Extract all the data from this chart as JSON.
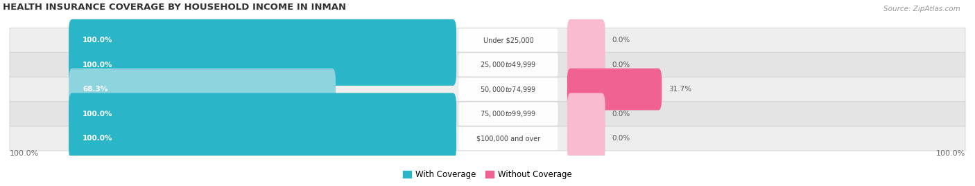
{
  "title": "HEALTH INSURANCE COVERAGE BY HOUSEHOLD INCOME IN INMAN",
  "source": "Source: ZipAtlas.com",
  "categories": [
    "Under $25,000",
    "$25,000 to $49,999",
    "$50,000 to $74,999",
    "$75,000 to $99,999",
    "$100,000 and over"
  ],
  "with_coverage": [
    100.0,
    100.0,
    68.3,
    100.0,
    100.0
  ],
  "without_coverage": [
    0.0,
    0.0,
    31.7,
    0.0,
    0.0
  ],
  "color_with_full": "#2bb5c8",
  "color_with_partial": "#8dd4df",
  "color_without_full": "#f06292",
  "color_without_small": "#f8bbd0",
  "background": "#ffffff",
  "row_bg_even": "#f0f0f0",
  "row_bg_odd": "#e0e0e0",
  "legend_with": "With Coverage",
  "legend_without": "Without Coverage"
}
